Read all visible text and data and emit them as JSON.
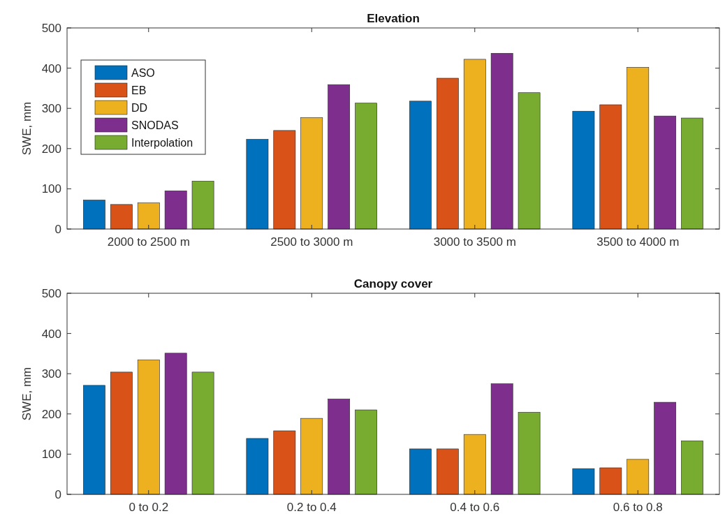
{
  "chart_data": [
    {
      "type": "bar",
      "title": "Elevation",
      "ylabel": "SWE, mm",
      "categories": [
        "2000 to 2500 m",
        "2500 to 3000 m",
        "3000 to 3500 m",
        "3500 to 4000 m"
      ],
      "series": [
        {
          "name": "ASO",
          "color": "#0072bd",
          "values": [
            72,
            223,
            318,
            293
          ]
        },
        {
          "name": "EB",
          "color": "#d95319",
          "values": [
            61,
            245,
            375,
            309
          ]
        },
        {
          "name": "DD",
          "color": "#edb120",
          "values": [
            65,
            277,
            422,
            402
          ]
        },
        {
          "name": "SNODAS",
          "color": "#7e2f8e",
          "values": [
            95,
            359,
            437,
            281
          ]
        },
        {
          "name": "Interpolation",
          "color": "#77ac30",
          "values": [
            119,
            313,
            339,
            276
          ]
        }
      ],
      "ylim": [
        0,
        500
      ],
      "yticks": [
        0,
        100,
        200,
        300,
        400,
        500
      ],
      "legend": "top left",
      "grid": false
    },
    {
      "type": "bar",
      "title": "Canopy cover",
      "ylabel": "SWE, mm",
      "categories": [
        "0 to 0.2",
        "0.2 to 0.4",
        "0.4 to 0.6",
        "0.6 to 0.8"
      ],
      "series": [
        {
          "color": "#0072bd",
          "values": [
            271,
            139,
            113,
            64
          ]
        },
        {
          "color": "#d95319",
          "values": [
            304,
            158,
            113,
            66
          ]
        },
        {
          "color": "#edb120",
          "values": [
            334,
            189,
            149,
            87
          ]
        },
        {
          "color": "#7e2f8e",
          "values": [
            351,
            237,
            275,
            229
          ]
        },
        {
          "color": "#77ac30",
          "values": [
            304,
            210,
            204,
            133
          ]
        }
      ],
      "ylim": [
        0,
        500
      ],
      "yticks": [
        0,
        100,
        200,
        300,
        400,
        500
      ],
      "legend": false,
      "grid": false
    }
  ]
}
